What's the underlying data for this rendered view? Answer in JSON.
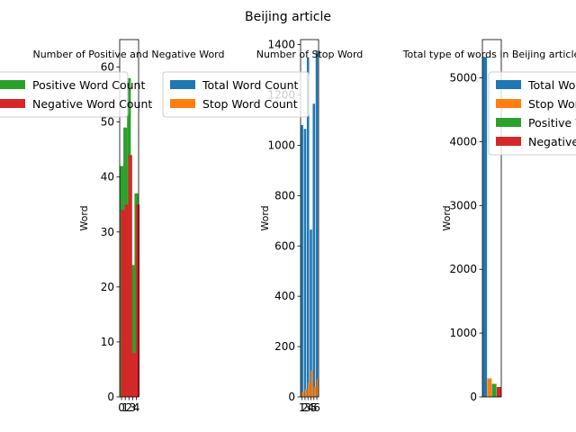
{
  "figure_title": "Beijing article",
  "chart_data": [
    {
      "type": "bar",
      "title": "Number of Positive and Negative Word",
      "xlabel": "",
      "ylabel": "Word",
      "xlim": [
        -0.5,
        4.6
      ],
      "ylim": [
        0,
        65
      ],
      "yticks": [
        0,
        10,
        20,
        30,
        40,
        50,
        60
      ],
      "xticks": [
        0,
        1,
        2,
        3,
        4
      ],
      "xtick_labels": [
        "0",
        "1",
        "2",
        "3",
        "4"
      ],
      "grid": false,
      "legend_position": "upper-left",
      "series": [
        {
          "name": "Positive Word Count",
          "color": "#2ca02c",
          "x": [
            0,
            1,
            2,
            3,
            4
          ],
          "values": [
            42,
            49,
            58,
            24,
            37
          ]
        },
        {
          "name": "Negative Word Count",
          "color": "#d62728",
          "x": [
            0.35,
            1.35,
            2.35,
            3.35,
            4.35
          ],
          "values": [
            34,
            35,
            44,
            8,
            35
          ]
        }
      ]
    },
    {
      "type": "bar",
      "title": "Number of Stop Word",
      "xlabel": "",
      "ylabel": "Word",
      "xlim": [
        0.5,
        6.6
      ],
      "ylim": [
        0,
        1420
      ],
      "yticks": [
        0,
        200,
        400,
        600,
        800,
        1000,
        1200,
        1400
      ],
      "xticks": [
        1,
        2,
        3,
        4,
        5,
        6
      ],
      "xtick_labels": [
        "1",
        "2",
        "3",
        "4",
        "5",
        "6"
      ],
      "grid": false,
      "legend_position": "upper-left",
      "series": [
        {
          "name": "Total Word Count",
          "color": "#1f77b4",
          "x": [
            1,
            2,
            3,
            4,
            5,
            6
          ],
          "values": [
            1080,
            1065,
            1350,
            665,
            1165,
            1375
          ]
        },
        {
          "name": "Stop Word Count",
          "color": "#ff7f0e",
          "x": [
            1.35,
            2.35,
            3.35,
            4.35,
            5.35,
            6.35
          ],
          "values": [
            20,
            30,
            55,
            105,
            40,
            70
          ]
        }
      ]
    },
    {
      "type": "bar",
      "title": "Total type of words in Beijing article",
      "xlabel": "",
      "ylabel": "Word",
      "xlim": [
        -0.5,
        3.5
      ],
      "ylim": [
        0,
        5600
      ],
      "yticks": [
        0,
        1000,
        2000,
        3000,
        4000,
        5000
      ],
      "xticks": [],
      "grid": false,
      "legend_position": "upper-right",
      "series": [
        {
          "name": "Total Word Count",
          "color": "#1f77b4",
          "x": [
            0
          ],
          "values": [
            5330
          ]
        },
        {
          "name": "Stop Word Count",
          "color": "#ff7f0e",
          "x": [
            1
          ],
          "values": [
            290
          ]
        },
        {
          "name": "Positive Word Count",
          "color": "#2ca02c",
          "x": [
            2
          ],
          "values": [
            205
          ]
        },
        {
          "name": "Negative Word Count",
          "color": "#d62728",
          "x": [
            3
          ],
          "values": [
            155
          ]
        }
      ]
    }
  ]
}
